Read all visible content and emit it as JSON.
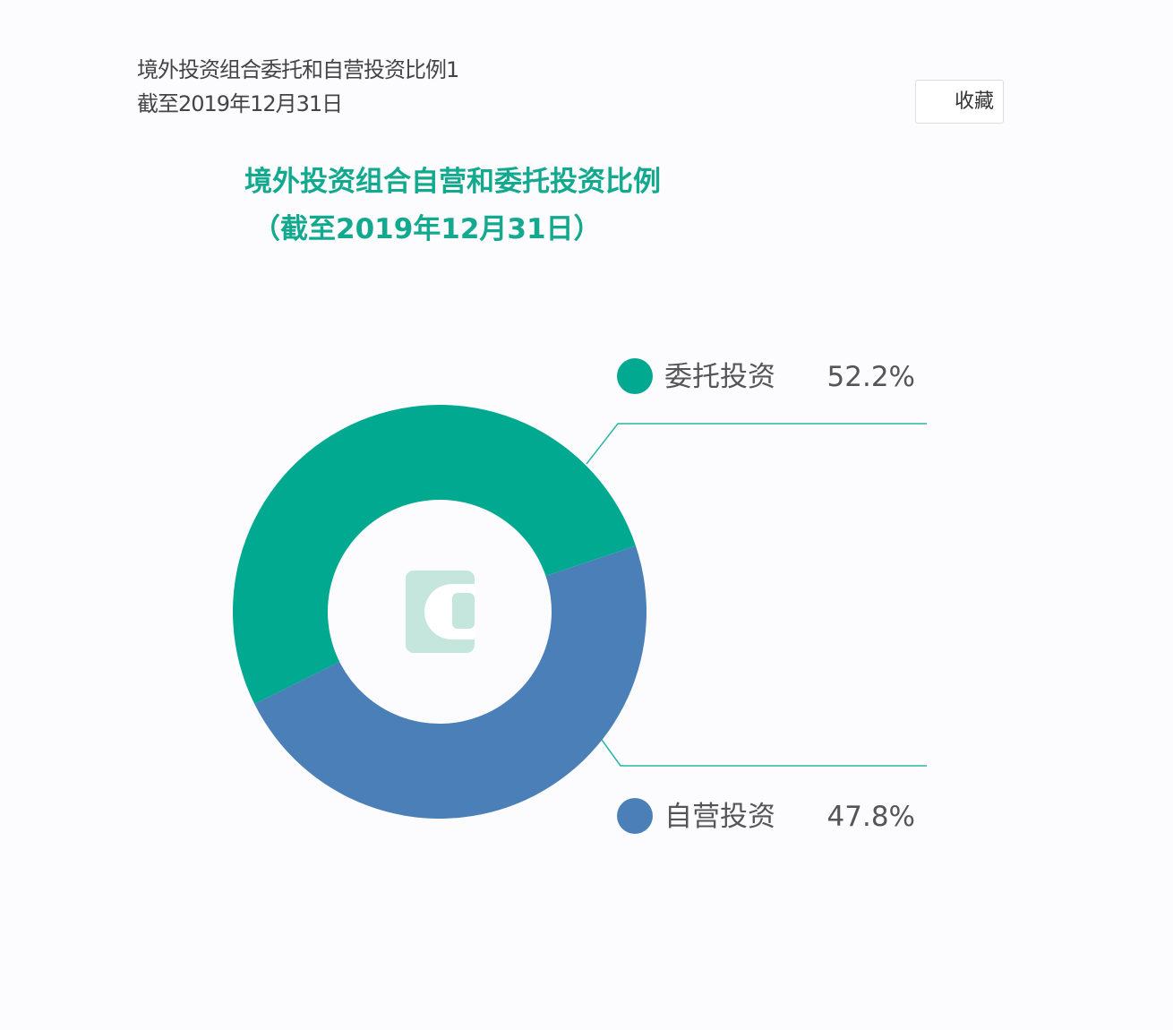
{
  "header": {
    "title": "境外投资组合委托和自营投资比例1",
    "subtitle": "截至2019年12月31日",
    "favorite_label": "收藏"
  },
  "chart_data": {
    "type": "pie",
    "title": "境外投资组合自营和委托投资比例",
    "subtitle": "（截至2019年12月31日）",
    "donut": true,
    "legend_placement": "right",
    "slices": [
      {
        "name": "委托投资",
        "value": 52.2,
        "label": "52.2%",
        "color": "#00a98f"
      },
      {
        "name": "自营投资",
        "value": 47.8,
        "label": "47.8%",
        "color": "#4a7fb8"
      }
    ]
  }
}
